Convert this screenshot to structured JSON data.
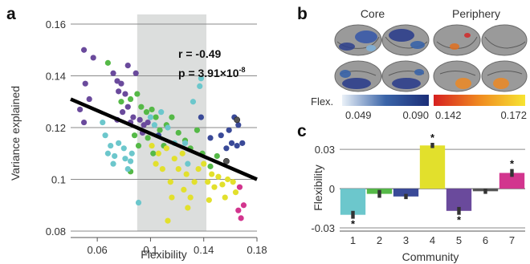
{
  "panel_a": {
    "letter": "a",
    "stat_r": "r = -0.49",
    "stat_p_prefix": "p = 3.91×10",
    "stat_p_exp": "-8"
  },
  "panel_b": {
    "letter": "b",
    "core_title": "Core",
    "periphery_title": "Periphery",
    "flex_label": "Flex.",
    "core_scale": {
      "min": "0.049",
      "max": "0.090",
      "colors": [
        "#eaf1f8",
        "#3a64a8",
        "#1b2e78"
      ]
    },
    "periphery_scale": {
      "min": "0.142",
      "max": "0.172",
      "colors": [
        "#d62020",
        "#f08a20",
        "#f7e431"
      ]
    }
  },
  "panel_c": {
    "letter": "c"
  },
  "chart_data": [
    {
      "type": "scatter",
      "panel": "a",
      "xlabel": "Flexibility",
      "ylabel": "Variance explained",
      "xlim": [
        0.04,
        0.18
      ],
      "ylim": [
        0.08,
        0.16
      ],
      "xticks": [
        0.06,
        0.1,
        0.14,
        0.18
      ],
      "xtick_labels": [
        "0.06",
        "0.1",
        "0.14",
        "0.18"
      ],
      "yticks": [
        0.08,
        0.1,
        0.12,
        0.14,
        0.16
      ],
      "ytick_labels": [
        "0.08",
        "0.1",
        "0.12",
        "0.14",
        "0.16"
      ],
      "shaded_x_range": [
        0.09,
        0.142
      ],
      "fit_line": {
        "x": [
          0.04,
          0.18
        ],
        "y": [
          0.131,
          0.1
        ]
      },
      "grid": "horizontal",
      "community_colors": {
        "1": "#6cc7cc",
        "2": "#55b947",
        "3": "#3a4a98",
        "4": "#e2e02c",
        "5": "#6a4a9c",
        "6": "#555555",
        "7": "#d2358e"
      },
      "points": [
        {
          "x": 0.05,
          "y": 0.15,
          "c": 5
        },
        {
          "x": 0.057,
          "y": 0.147,
          "c": 5
        },
        {
          "x": 0.051,
          "y": 0.137,
          "c": 5
        },
        {
          "x": 0.054,
          "y": 0.131,
          "c": 5
        },
        {
          "x": 0.047,
          "y": 0.127,
          "c": 5
        },
        {
          "x": 0.05,
          "y": 0.122,
          "c": 5
        },
        {
          "x": 0.072,
          "y": 0.141,
          "c": 5
        },
        {
          "x": 0.075,
          "y": 0.138,
          "c": 5
        },
        {
          "x": 0.078,
          "y": 0.137,
          "c": 5
        },
        {
          "x": 0.076,
          "y": 0.134,
          "c": 5
        },
        {
          "x": 0.081,
          "y": 0.133,
          "c": 5
        },
        {
          "x": 0.083,
          "y": 0.128,
          "c": 5
        },
        {
          "x": 0.079,
          "y": 0.126,
          "c": 5
        },
        {
          "x": 0.087,
          "y": 0.124,
          "c": 5
        },
        {
          "x": 0.085,
          "y": 0.122,
          "c": 5
        },
        {
          "x": 0.092,
          "y": 0.123,
          "c": 5
        },
        {
          "x": 0.095,
          "y": 0.121,
          "c": 5
        },
        {
          "x": 0.098,
          "y": 0.122,
          "c": 5
        },
        {
          "x": 0.083,
          "y": 0.144,
          "c": 5
        },
        {
          "x": 0.089,
          "y": 0.141,
          "c": 5
        },
        {
          "x": 0.094,
          "y": 0.118,
          "c": 5
        },
        {
          "x": 0.075,
          "y": 0.123,
          "c": 5
        },
        {
          "x": 0.068,
          "y": 0.145,
          "c": 2
        },
        {
          "x": 0.078,
          "y": 0.13,
          "c": 2
        },
        {
          "x": 0.085,
          "y": 0.131,
          "c": 2
        },
        {
          "x": 0.09,
          "y": 0.133,
          "c": 2
        },
        {
          "x": 0.093,
          "y": 0.128,
          "c": 2
        },
        {
          "x": 0.097,
          "y": 0.126,
          "c": 2
        },
        {
          "x": 0.101,
          "y": 0.127,
          "c": 2
        },
        {
          "x": 0.104,
          "y": 0.124,
          "c": 2
        },
        {
          "x": 0.088,
          "y": 0.117,
          "c": 2
        },
        {
          "x": 0.091,
          "y": 0.113,
          "c": 2
        },
        {
          "x": 0.098,
          "y": 0.116,
          "c": 2
        },
        {
          "x": 0.102,
          "y": 0.11,
          "c": 2
        },
        {
          "x": 0.107,
          "y": 0.119,
          "c": 2
        },
        {
          "x": 0.112,
          "y": 0.121,
          "c": 2
        },
        {
          "x": 0.116,
          "y": 0.124,
          "c": 2
        },
        {
          "x": 0.121,
          "y": 0.118,
          "c": 2
        },
        {
          "x": 0.126,
          "y": 0.115,
          "c": 2
        },
        {
          "x": 0.13,
          "y": 0.112,
          "c": 2
        },
        {
          "x": 0.135,
          "y": 0.119,
          "c": 2
        },
        {
          "x": 0.139,
          "y": 0.11,
          "c": 2
        },
        {
          "x": 0.145,
          "y": 0.105,
          "c": 2
        },
        {
          "x": 0.15,
          "y": 0.109,
          "c": 2
        },
        {
          "x": 0.085,
          "y": 0.103,
          "c": 2
        },
        {
          "x": 0.11,
          "y": 0.113,
          "c": 2
        },
        {
          "x": 0.064,
          "y": 0.122,
          "c": 1
        },
        {
          "x": 0.066,
          "y": 0.117,
          "c": 1
        },
        {
          "x": 0.07,
          "y": 0.113,
          "c": 1
        },
        {
          "x": 0.068,
          "y": 0.11,
          "c": 1
        },
        {
          "x": 0.073,
          "y": 0.109,
          "c": 1
        },
        {
          "x": 0.076,
          "y": 0.114,
          "c": 1
        },
        {
          "x": 0.08,
          "y": 0.112,
          "c": 1
        },
        {
          "x": 0.081,
          "y": 0.108,
          "c": 1
        },
        {
          "x": 0.085,
          "y": 0.107,
          "c": 1
        },
        {
          "x": 0.083,
          "y": 0.104,
          "c": 1
        },
        {
          "x": 0.086,
          "y": 0.11,
          "c": 1
        },
        {
          "x": 0.072,
          "y": 0.106,
          "c": 1
        },
        {
          "x": 0.1,
          "y": 0.124,
          "c": 1
        },
        {
          "x": 0.103,
          "y": 0.121,
          "c": 1
        },
        {
          "x": 0.108,
          "y": 0.126,
          "c": 1
        },
        {
          "x": 0.113,
          "y": 0.12,
          "c": 1
        },
        {
          "x": 0.118,
          "y": 0.114,
          "c": 1
        },
        {
          "x": 0.126,
          "y": 0.114,
          "c": 1
        },
        {
          "x": 0.132,
          "y": 0.13,
          "c": 1
        },
        {
          "x": 0.137,
          "y": 0.136,
          "c": 1
        },
        {
          "x": 0.138,
          "y": 0.139,
          "c": 1
        },
        {
          "x": 0.128,
          "y": 0.106,
          "c": 1
        },
        {
          "x": 0.091,
          "y": 0.091,
          "c": 1
        },
        {
          "x": 0.106,
          "y": 0.117,
          "c": 3
        },
        {
          "x": 0.138,
          "y": 0.124,
          "c": 3
        },
        {
          "x": 0.159,
          "y": 0.119,
          "c": 3
        },
        {
          "x": 0.163,
          "y": 0.124,
          "c": 3
        },
        {
          "x": 0.166,
          "y": 0.121,
          "c": 3
        },
        {
          "x": 0.161,
          "y": 0.114,
          "c": 3
        },
        {
          "x": 0.165,
          "y": 0.113,
          "c": 3
        },
        {
          "x": 0.169,
          "y": 0.114,
          "c": 3
        },
        {
          "x": 0.157,
          "y": 0.112,
          "c": 3
        },
        {
          "x": 0.145,
          "y": 0.116,
          "c": 3
        },
        {
          "x": 0.153,
          "y": 0.117,
          "c": 3
        },
        {
          "x": 0.101,
          "y": 0.113,
          "c": 4
        },
        {
          "x": 0.104,
          "y": 0.106,
          "c": 4
        },
        {
          "x": 0.106,
          "y": 0.11,
          "c": 4
        },
        {
          "x": 0.109,
          "y": 0.104,
          "c": 4
        },
        {
          "x": 0.112,
          "y": 0.112,
          "c": 4
        },
        {
          "x": 0.115,
          "y": 0.099,
          "c": 4
        },
        {
          "x": 0.116,
          "y": 0.093,
          "c": 4
        },
        {
          "x": 0.118,
          "y": 0.108,
          "c": 4
        },
        {
          "x": 0.121,
          "y": 0.104,
          "c": 4
        },
        {
          "x": 0.124,
          "y": 0.11,
          "c": 4
        },
        {
          "x": 0.127,
          "y": 0.102,
          "c": 4
        },
        {
          "x": 0.125,
          "y": 0.096,
          "c": 4
        },
        {
          "x": 0.13,
          "y": 0.093,
          "c": 4
        },
        {
          "x": 0.133,
          "y": 0.099,
          "c": 4
        },
        {
          "x": 0.136,
          "y": 0.104,
          "c": 4
        },
        {
          "x": 0.14,
          "y": 0.106,
          "c": 4
        },
        {
          "x": 0.143,
          "y": 0.099,
          "c": 4
        },
        {
          "x": 0.146,
          "y": 0.102,
          "c": 4
        },
        {
          "x": 0.148,
          "y": 0.097,
          "c": 4
        },
        {
          "x": 0.151,
          "y": 0.101,
          "c": 4
        },
        {
          "x": 0.154,
          "y": 0.098,
          "c": 4
        },
        {
          "x": 0.156,
          "y": 0.093,
          "c": 4
        },
        {
          "x": 0.158,
          "y": 0.1,
          "c": 4
        },
        {
          "x": 0.162,
          "y": 0.099,
          "c": 4
        },
        {
          "x": 0.164,
          "y": 0.095,
          "c": 4
        },
        {
          "x": 0.128,
          "y": 0.089,
          "c": 4
        },
        {
          "x": 0.113,
          "y": 0.084,
          "c": 4
        },
        {
          "x": 0.144,
          "y": 0.092,
          "c": 4
        },
        {
          "x": 0.167,
          "y": 0.097,
          "c": 7
        },
        {
          "x": 0.17,
          "y": 0.09,
          "c": 7
        },
        {
          "x": 0.168,
          "y": 0.085,
          "c": 7
        },
        {
          "x": 0.166,
          "y": 0.088,
          "c": 7
        },
        {
          "x": 0.165,
          "y": 0.123,
          "c": 6
        },
        {
          "x": 0.157,
          "y": 0.107,
          "c": 6
        }
      ]
    },
    {
      "type": "bar",
      "panel": "c",
      "xlabel": "Community",
      "ylabel": "Flexibility",
      "categories": [
        "1",
        "2",
        "3",
        "4",
        "5",
        "6",
        "7"
      ],
      "values": [
        -0.02,
        -0.004,
        -0.006,
        0.033,
        -0.017,
        -0.002,
        0.012
      ],
      "errors": [
        0.003,
        0.003,
        0.002,
        0.002,
        0.003,
        0.002,
        0.003
      ],
      "significant": [
        true,
        false,
        false,
        true,
        true,
        false,
        true
      ],
      "star_symbol": "*",
      "colors": [
        "#6cc7cc",
        "#55b947",
        "#3a4a98",
        "#e2e02c",
        "#6a4a9c",
        "#555555",
        "#d2358e"
      ],
      "ylim": [
        -0.03,
        0.035
      ],
      "yticks": [
        -0.03,
        0,
        0.03
      ],
      "ytick_labels": [
        "-0.03",
        "0",
        "0.03"
      ]
    }
  ]
}
